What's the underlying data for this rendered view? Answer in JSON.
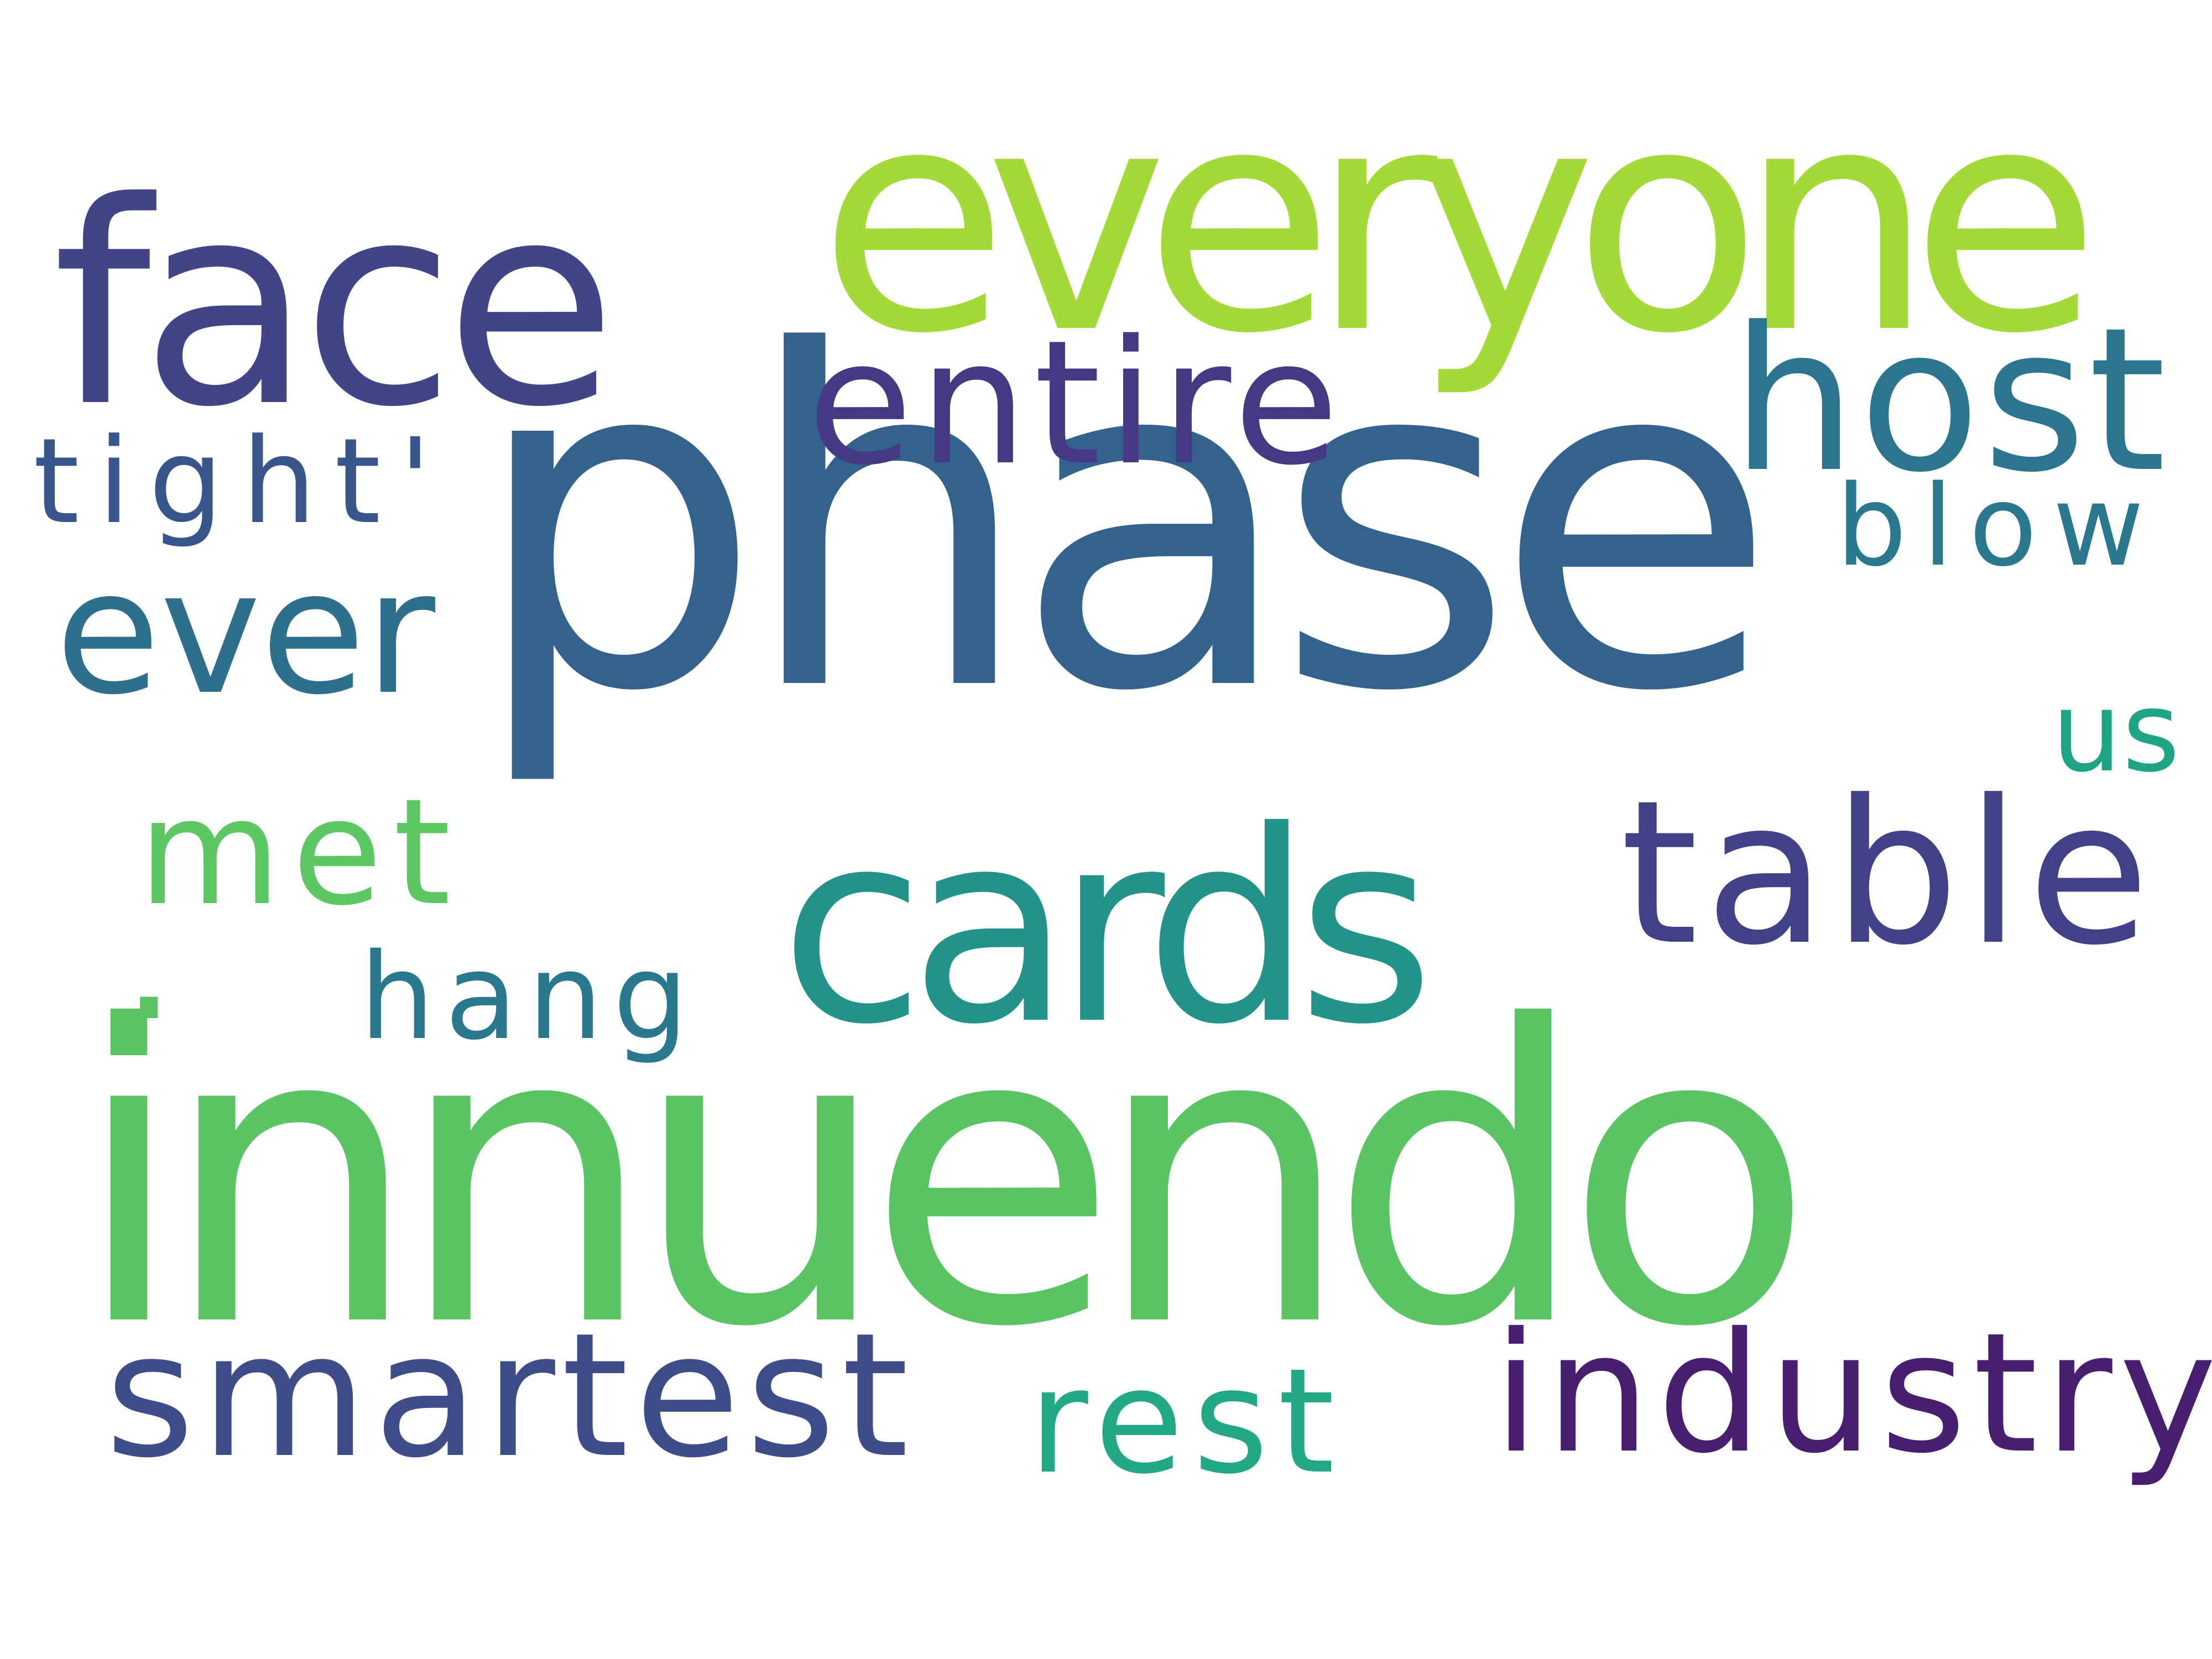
{
  "words": [
    {
      "id": "innuendo",
      "text": "innuendo",
      "color": "#5ac464"
    },
    {
      "id": "phase",
      "text": "phase",
      "color": "#33628d"
    },
    {
      "id": "face",
      "text": "face",
      "color": "#404588"
    },
    {
      "id": "everyone",
      "text": "everyone",
      "color": "#a3da37"
    },
    {
      "id": "cards",
      "text": "cards",
      "color": "#23938a"
    },
    {
      "id": "entire",
      "text": "entire",
      "color": "#443982"
    },
    {
      "id": "host",
      "text": "host",
      "color": "#2b758e"
    },
    {
      "id": "table",
      "text": "table",
      "color": "#424187"
    },
    {
      "id": "ever",
      "text": "ever",
      "color": "#2e6f8e"
    },
    {
      "id": "smartest",
      "text": "smartest",
      "color": "#3e4c8a"
    },
    {
      "id": "industry",
      "text": "industry",
      "color": "#481f70"
    },
    {
      "id": "met",
      "text": "met",
      "color": "#5dc863"
    },
    {
      "id": "rest",
      "text": "rest",
      "color": "#22a884"
    },
    {
      "id": "hang",
      "text": "hang",
      "color": "#2a788e"
    },
    {
      "id": "tight",
      "text": "tight'",
      "color": "#39568c"
    },
    {
      "id": "blow",
      "text": "blow",
      "color": "#2a788e"
    },
    {
      "id": "us",
      "text": "us",
      "color": "#20a486"
    },
    {
      "id": "dot",
      "text": ".",
      "color": "#5ac464"
    }
  ],
  "background": "#ffffff"
}
